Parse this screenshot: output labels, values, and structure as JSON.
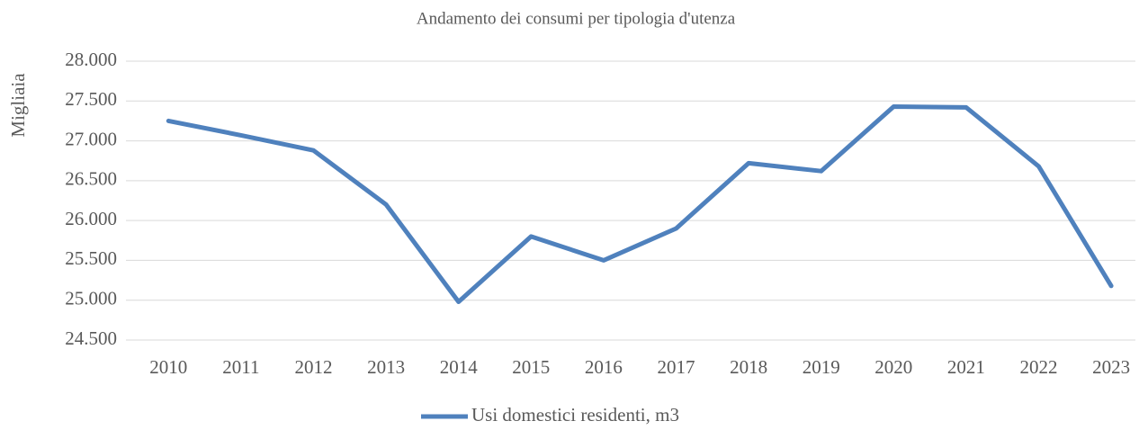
{
  "chart_data": {
    "type": "line",
    "title": "Andamento dei consumi per tipologia d'utenza",
    "y_label": "Migliaia",
    "categories": [
      "2010",
      "2011",
      "2012",
      "2013",
      "2014",
      "2015",
      "2016",
      "2017",
      "2018",
      "2019",
      "2020",
      "2021",
      "2022",
      "2023"
    ],
    "series": [
      {
        "name": "Usi domestici residenti, m3",
        "color": "#4f81bd",
        "values": [
          27250,
          27070,
          26880,
          26200,
          24980,
          25800,
          25500,
          25900,
          26720,
          26620,
          27430,
          27420,
          26680,
          25180
        ]
      }
    ],
    "ylim": [
      24500,
      28000
    ],
    "yticks": [
      {
        "value": 24500,
        "label": "24.500"
      },
      {
        "value": 25000,
        "label": "25.000"
      },
      {
        "value": 25500,
        "label": "25.500"
      },
      {
        "value": 26000,
        "label": "26.000"
      },
      {
        "value": 26500,
        "label": "26.500"
      },
      {
        "value": 27000,
        "label": "27.000"
      },
      {
        "value": 27500,
        "label": "27.500"
      },
      {
        "value": 28000,
        "label": "28.000"
      }
    ],
    "grid": true,
    "legend": "bottom"
  }
}
